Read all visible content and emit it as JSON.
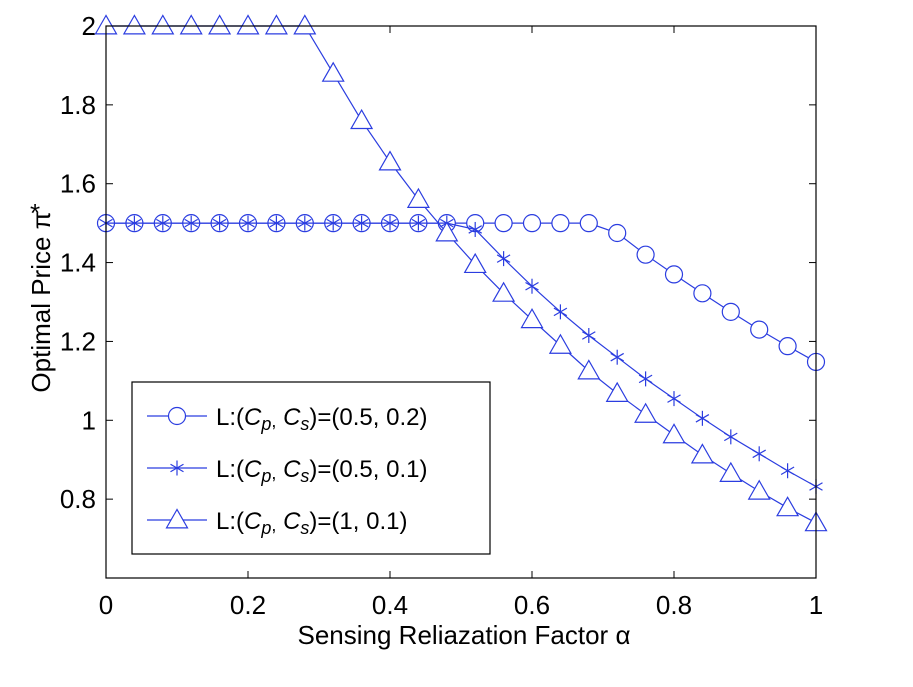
{
  "chart_data": {
    "type": "line",
    "title": "",
    "xlabel": "Sensing Reliazation Factor α",
    "ylabel": "Optimal Price  π",
    "ylabel_superscript": "*",
    "xlim": [
      0,
      1
    ],
    "ylim": [
      0.6,
      2.0
    ],
    "xticks": [
      0,
      0.2,
      0.4,
      0.6,
      0.8,
      1
    ],
    "xtick_labels": [
      "0",
      "0.2",
      "0.4",
      "0.6",
      "0.8",
      "1"
    ],
    "yticks": [
      0.8,
      1.0,
      1.2,
      1.4,
      1.6,
      1.8,
      2.0
    ],
    "ytick_labels": [
      "0.8",
      "1",
      "1.2",
      "1.4",
      "1.6",
      "1.8",
      "2"
    ],
    "grid": false,
    "legend_position": "bottom-left",
    "x": [
      0,
      0.04,
      0.08,
      0.12,
      0.16,
      0.2,
      0.24,
      0.28,
      0.32,
      0.36,
      0.4,
      0.44,
      0.48,
      0.52,
      0.56,
      0.6,
      0.64,
      0.68,
      0.72,
      0.76,
      0.8,
      0.84,
      0.88,
      0.92,
      0.96,
      1.0
    ],
    "series": [
      {
        "name": "L:(C_p, C_s)=(0.5, 0.2)",
        "legend_prefix": "L:(",
        "legend_suffix": ")=(0.5, 0.2)",
        "marker": "circle",
        "color": "#2b3de0",
        "values": [
          1.5,
          1.5,
          1.5,
          1.5,
          1.5,
          1.5,
          1.5,
          1.5,
          1.5,
          1.5,
          1.5,
          1.5,
          1.5,
          1.5,
          1.5,
          1.5,
          1.5,
          1.5,
          1.475,
          1.42,
          1.37,
          1.322,
          1.275,
          1.23,
          1.188,
          1.148
        ]
      },
      {
        "name": "L:(C_p, C_s)=(0.5, 0.1)",
        "legend_prefix": "L:(",
        "legend_suffix": ")=(0.5, 0.1)",
        "marker": "star",
        "color": "#2b3de0",
        "values": [
          1.5,
          1.5,
          1.5,
          1.5,
          1.5,
          1.5,
          1.5,
          1.5,
          1.5,
          1.5,
          1.5,
          1.5,
          1.5,
          1.484,
          1.41,
          1.34,
          1.275,
          1.215,
          1.16,
          1.105,
          1.055,
          1.005,
          0.958,
          0.915,
          0.872,
          0.832
        ]
      },
      {
        "name": "L:(C_p, C_s)=(1, 0.1)",
        "legend_prefix": "L:(",
        "legend_suffix": ")=(1, 0.1)",
        "marker": "triangle",
        "color": "#2b3de0",
        "values": [
          2.0,
          2.0,
          2.0,
          2.0,
          2.0,
          2.0,
          2.0,
          2.0,
          1.88,
          1.76,
          1.655,
          1.56,
          1.475,
          1.395,
          1.322,
          1.255,
          1.19,
          1.125,
          1.068,
          1.015,
          0.963,
          0.912,
          0.865,
          0.82,
          0.778,
          0.74
        ]
      }
    ],
    "legend_symbols": {
      "cp_letter": "C",
      "cp_sub": "p",
      "comma": ",",
      "cs_letter": "C",
      "cs_sub": "s"
    }
  }
}
